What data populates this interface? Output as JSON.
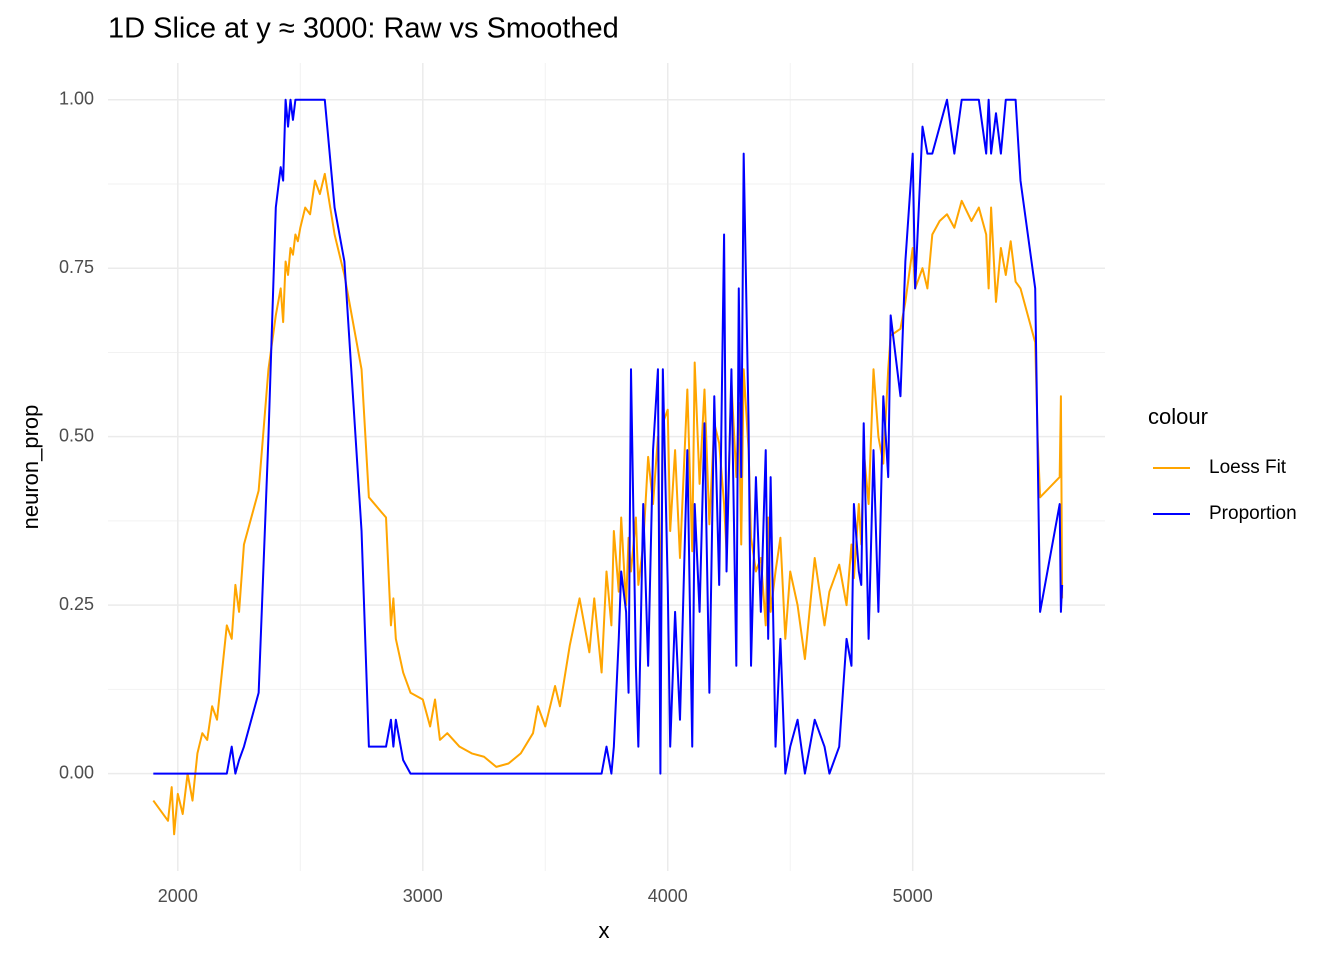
{
  "chart_data": {
    "type": "line",
    "title": "1D Slice at y ≈ 3000: Raw vs Smoothed",
    "x_label": "x",
    "y_label": "neuron_prop",
    "legend_title": "colour",
    "legend_position": "right",
    "grid": true,
    "xlim": [
      1715,
      5785
    ],
    "xticks": [
      2000,
      3000,
      4000,
      5000
    ],
    "ylim": [
      -0.1445,
      1.0545
    ],
    "yticks": [
      {
        "value": 0,
        "label": "0.00"
      },
      {
        "value": 0.25,
        "label": "0.25"
      },
      {
        "value": 0.5,
        "label": "0.50"
      },
      {
        "value": 0.75,
        "label": "0.75"
      },
      {
        "value": 1,
        "label": "1.00"
      }
    ],
    "x": [
      1900,
      1960,
      1975,
      1985,
      2000,
      2020,
      2040,
      2060,
      2080,
      2100,
      2120,
      2140,
      2160,
      2180,
      2200,
      2220,
      2235,
      2250,
      2270,
      2330,
      2370,
      2400,
      2420,
      2430,
      2440,
      2450,
      2460,
      2470,
      2480,
      2490,
      2500,
      2520,
      2540,
      2560,
      2580,
      2600,
      2640,
      2680,
      2750,
      2780,
      2850,
      2870,
      2880,
      2890,
      2920,
      2950,
      3000,
      3030,
      3050,
      3070,
      3100,
      3150,
      3200,
      3250,
      3300,
      3350,
      3400,
      3450,
      3470,
      3500,
      3540,
      3560,
      3600,
      3640,
      3680,
      3700,
      3730,
      3750,
      3770,
      3780,
      3800,
      3810,
      3830,
      3840,
      3850,
      3870,
      3880,
      3900,
      3920,
      3940,
      3960,
      3970,
      3980,
      4000,
      4010,
      4030,
      4050,
      4080,
      4100,
      4110,
      4130,
      4150,
      4170,
      4190,
      4210,
      4230,
      4240,
      4260,
      4280,
      4290,
      4300,
      4310,
      4330,
      4340,
      4360,
      4380,
      4400,
      4410,
      4420,
      4440,
      4460,
      4480,
      4500,
      4530,
      4560,
      4600,
      4640,
      4660,
      4700,
      4730,
      4750,
      4760,
      4780,
      4790,
      4800,
      4820,
      4840,
      4860,
      4880,
      4900,
      4910,
      4950,
      4970,
      5000,
      5010,
      5040,
      5060,
      5080,
      5110,
      5140,
      5170,
      5200,
      5240,
      5270,
      5300,
      5310,
      5320,
      5340,
      5360,
      5380,
      5400,
      5420,
      5440,
      5500,
      5510,
      5520,
      5600,
      5605,
      5610
    ],
    "series": [
      {
        "name": "Loess Fit",
        "color": "#ffa500",
        "values": [
          -0.04,
          -0.07,
          -0.02,
          -0.09,
          -0.03,
          -0.06,
          0.0,
          -0.04,
          0.03,
          0.06,
          0.05,
          0.1,
          0.08,
          0.15,
          0.22,
          0.2,
          0.28,
          0.24,
          0.34,
          0.42,
          0.6,
          0.68,
          0.72,
          0.67,
          0.76,
          0.74,
          0.78,
          0.77,
          0.8,
          0.79,
          0.81,
          0.84,
          0.83,
          0.88,
          0.86,
          0.89,
          0.8,
          0.74,
          0.6,
          0.41,
          0.38,
          0.22,
          0.26,
          0.2,
          0.15,
          0.12,
          0.11,
          0.07,
          0.11,
          0.05,
          0.06,
          0.04,
          0.03,
          0.025,
          0.01,
          0.015,
          0.03,
          0.06,
          0.1,
          0.07,
          0.13,
          0.1,
          0.19,
          0.26,
          0.18,
          0.26,
          0.15,
          0.3,
          0.22,
          0.36,
          0.27,
          0.38,
          0.25,
          0.35,
          0.3,
          0.38,
          0.28,
          0.34,
          0.47,
          0.4,
          0.5,
          0.23,
          0.52,
          0.54,
          0.36,
          0.48,
          0.32,
          0.57,
          0.33,
          0.61,
          0.43,
          0.57,
          0.37,
          0.52,
          0.49,
          0.4,
          0.33,
          0.58,
          0.44,
          0.55,
          0.34,
          0.6,
          0.48,
          0.35,
          0.3,
          0.32,
          0.22,
          0.38,
          0.24,
          0.3,
          0.35,
          0.2,
          0.3,
          0.25,
          0.17,
          0.32,
          0.22,
          0.27,
          0.31,
          0.25,
          0.34,
          0.29,
          0.4,
          0.34,
          0.48,
          0.4,
          0.6,
          0.5,
          0.46,
          0.6,
          0.65,
          0.66,
          0.7,
          0.78,
          0.72,
          0.75,
          0.72,
          0.8,
          0.82,
          0.83,
          0.81,
          0.85,
          0.82,
          0.84,
          0.8,
          0.72,
          0.84,
          0.7,
          0.78,
          0.74,
          0.79,
          0.73,
          0.72,
          0.64,
          0.5,
          0.41,
          0.44,
          0.56,
          0.26
        ]
      },
      {
        "name": "Proportion",
        "color": "#0000ff",
        "values": [
          0,
          0,
          0,
          0,
          0,
          0,
          0,
          0,
          0,
          0,
          0,
          0,
          0,
          0,
          0,
          0.04,
          0,
          0.02,
          0.04,
          0.12,
          0.5,
          0.84,
          0.9,
          0.88,
          1.0,
          0.96,
          1.0,
          0.97,
          1.0,
          1.0,
          1.0,
          1.0,
          1.0,
          1.0,
          1.0,
          1.0,
          0.84,
          0.76,
          0.36,
          0.04,
          0.04,
          0.08,
          0.04,
          0.08,
          0.02,
          0,
          0,
          0,
          0,
          0,
          0,
          0,
          0,
          0,
          0,
          0,
          0,
          0,
          0,
          0,
          0,
          0,
          0,
          0,
          0,
          0,
          0,
          0.04,
          0,
          0.04,
          0.2,
          0.3,
          0.24,
          0.12,
          0.6,
          0.16,
          0.04,
          0.4,
          0.16,
          0.48,
          0.6,
          0,
          0.6,
          0.28,
          0.04,
          0.24,
          0.08,
          0.48,
          0.04,
          0.4,
          0.24,
          0.52,
          0.12,
          0.56,
          0.28,
          0.8,
          0.3,
          0.6,
          0.16,
          0.72,
          0.44,
          0.92,
          0.52,
          0.16,
          0.44,
          0.24,
          0.48,
          0.2,
          0.44,
          0.04,
          0.2,
          0,
          0.04,
          0.08,
          0,
          0.08,
          0.04,
          0,
          0.04,
          0.2,
          0.16,
          0.4,
          0.3,
          0.28,
          0.52,
          0.2,
          0.48,
          0.24,
          0.56,
          0.44,
          0.68,
          0.56,
          0.76,
          0.92,
          0.72,
          0.96,
          0.92,
          0.92,
          0.96,
          1.0,
          0.92,
          1.0,
          1.0,
          1.0,
          0.92,
          1.0,
          0.92,
          0.98,
          0.92,
          1.0,
          1.0,
          1.0,
          0.88,
          0.72,
          0.48,
          0.24,
          0.4,
          0.24,
          0.28
        ]
      }
    ]
  }
}
